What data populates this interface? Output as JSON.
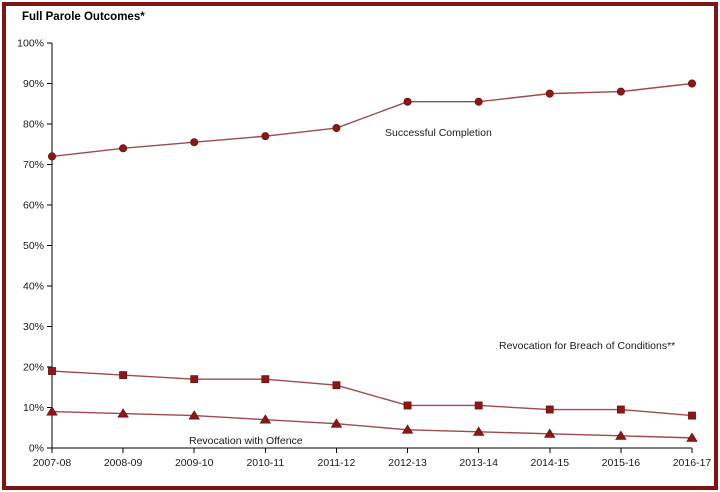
{
  "page": {
    "title": "Full Parole Outcomes*"
  },
  "chart_data": {
    "type": "line",
    "title": "Full Parole Outcomes*",
    "categories": [
      "2007-08",
      "2008-09",
      "2009-10",
      "2010-11",
      "2011-12",
      "2012-13",
      "2013-14",
      "2014-15",
      "2015-16",
      "2016-17"
    ],
    "series": [
      {
        "name": "Successful Completion",
        "marker": "circle",
        "values": [
          72,
          74,
          75.5,
          77,
          79,
          85.5,
          85.5,
          87.5,
          88,
          90
        ]
      },
      {
        "name": "Revocation for Breach of Conditions**",
        "marker": "square",
        "values": [
          19,
          18,
          17,
          17,
          15.5,
          10.5,
          10.5,
          9.5,
          9.5,
          8
        ]
      },
      {
        "name": "Revocation with Offence",
        "marker": "triangle",
        "values": [
          9,
          8.5,
          8,
          7,
          6,
          4.5,
          4,
          3.5,
          3,
          2.5
        ]
      }
    ],
    "xlabel": "",
    "ylabel": "",
    "ylim": [
      0,
      100
    ],
    "ytick_step": 10,
    "ytick_suffix": "%",
    "grid": false,
    "legend_position": "inline-labels",
    "colors": {
      "frame_border": "#7d1416",
      "line": "#9d4b4b",
      "marker_fill": "#8b1717",
      "marker_edge": "#5f0d0d",
      "axis": "#000000",
      "text": "#1a1a1a"
    }
  }
}
